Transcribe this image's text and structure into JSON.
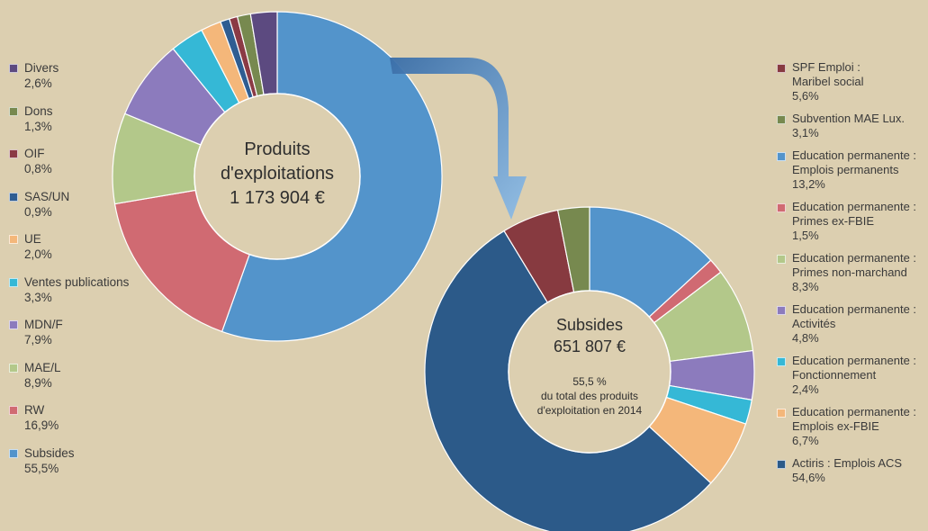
{
  "chart_data": [
    {
      "type": "pie",
      "variant": "donut",
      "center_text": [
        "Produits",
        "d'exploitations",
        "1 173 904 €"
      ],
      "legend_position": "left",
      "slices": [
        {
          "label": "Divers",
          "pct_label": "2,6%",
          "value": 2.6,
          "color": "#5c4a80"
        },
        {
          "label": "Dons",
          "pct_label": "1,3%",
          "value": 1.3,
          "color": "#77894f"
        },
        {
          "label": "OIF",
          "pct_label": "0,8%",
          "value": 0.8,
          "color": "#8b3a45"
        },
        {
          "label": "SAS/UN",
          "pct_label": "0,9%",
          "value": 0.9,
          "color": "#2f5d92"
        },
        {
          "label": "UE",
          "pct_label": "2,0%",
          "value": 2.0,
          "color": "#f4b77a"
        },
        {
          "label": "Ventes publications",
          "pct_label": "3,3%",
          "value": 3.3,
          "color": "#35b8d6"
        },
        {
          "label": "MDN/F",
          "pct_label": "7,9%",
          "value": 7.9,
          "color": "#8c7bbd"
        },
        {
          "label": "MAE/L",
          "pct_label": "8,9%",
          "value": 8.9,
          "color": "#b3c88a"
        },
        {
          "label": "RW",
          "pct_label": "16,9%",
          "value": 16.9,
          "color": "#d06a72"
        },
        {
          "label": "Subsides",
          "pct_label": "55,5%",
          "value": 55.5,
          "color": "#5394cb"
        }
      ]
    },
    {
      "type": "pie",
      "variant": "donut",
      "center_title": [
        "Subsides",
        "651 807 €"
      ],
      "center_note": [
        "55,5 %",
        "du total des produits",
        "d'exploitation en 2014"
      ],
      "legend_position": "right",
      "slices": [
        {
          "label": [
            "Education permanente :",
            "Emplois permanents"
          ],
          "pct_label": "13,2%",
          "value": 13.2,
          "color": "#5394cb"
        },
        {
          "label": [
            "Education permanente :",
            "Primes ex-FBIE"
          ],
          "pct_label": "1,5%",
          "value": 1.5,
          "color": "#d06a72"
        },
        {
          "label": [
            "Education permanente :",
            "Primes non-marchand"
          ],
          "pct_label": "8,3%",
          "value": 8.3,
          "color": "#b3c88a"
        },
        {
          "label": [
            "Education permanente :",
            "Activités"
          ],
          "pct_label": "4,8%",
          "value": 4.8,
          "color": "#8c7bbd"
        },
        {
          "label": [
            "Education permanente :",
            "Fonctionnement"
          ],
          "pct_label": "2,4%",
          "value": 2.4,
          "color": "#35b8d6"
        },
        {
          "label": [
            "Education permanente :",
            "Emplois ex-FBIE"
          ],
          "pct_label": "6,7%",
          "value": 6.7,
          "color": "#f4b77a"
        },
        {
          "label": [
            "Actiris : Emplois ACS"
          ],
          "pct_label": "54,6%",
          "value": 54.6,
          "color": "#2c5a89"
        },
        {
          "label": [
            "SPF Emploi :",
            "Maribel social"
          ],
          "pct_label": "5,6%",
          "value": 5.6,
          "color": "#873a40"
        },
        {
          "label": [
            "Subvention MAE Lux."
          ],
          "pct_label": "3,1%",
          "value": 3.1,
          "color": "#77894f"
        }
      ],
      "legend_order": [
        7,
        8,
        0,
        1,
        2,
        3,
        4,
        5,
        6
      ]
    }
  ]
}
